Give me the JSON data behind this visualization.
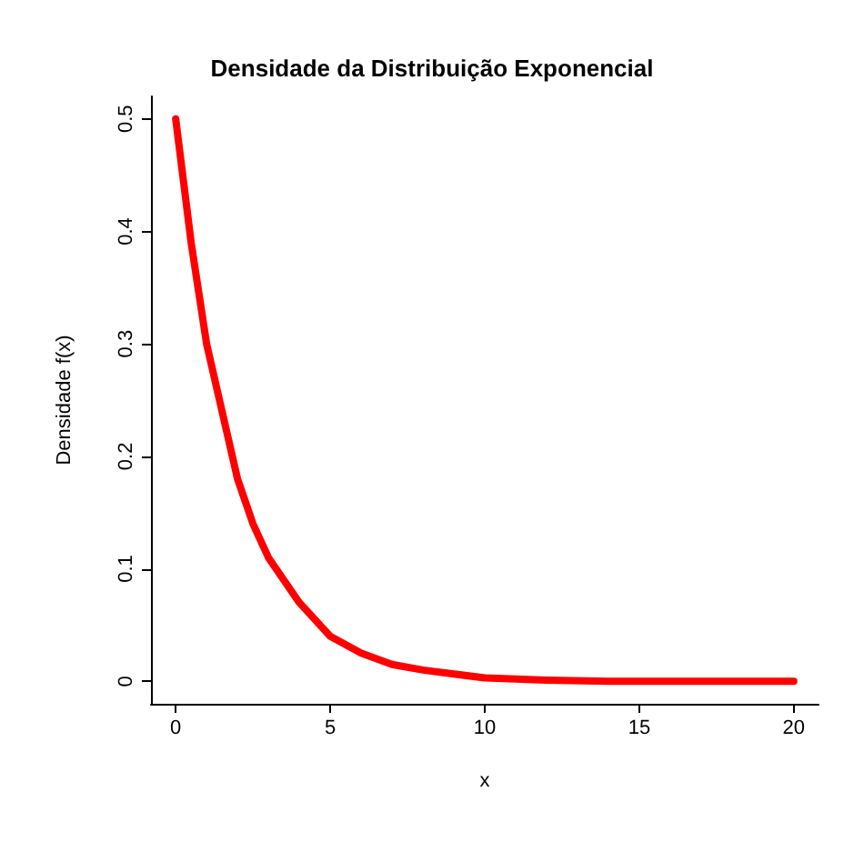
{
  "chart_data": {
    "type": "line",
    "title": "Densidade da Distribuição Exponencial",
    "xlabel": "x",
    "ylabel": "Densidade f(x)",
    "x": [
      0,
      0.5,
      1,
      1.5,
      2,
      2.5,
      3,
      4,
      5,
      6,
      7,
      8,
      10,
      12,
      14,
      16,
      18,
      20
    ],
    "series": [
      {
        "color": "#ff0000",
        "values": [
          0.5,
          0.39,
          0.3,
          0.24,
          0.18,
          0.14,
          0.11,
          0.07,
          0.04,
          0.025,
          0.015,
          0.01,
          0.003,
          0.001,
          0,
          0,
          0,
          0
        ]
      }
    ],
    "xlim": [
      -0.8,
      20.8
    ],
    "ylim": [
      -0.02,
      0.52
    ],
    "xticks": [
      0,
      5,
      10,
      15,
      20
    ],
    "yticks": [
      0,
      0.1,
      0.2,
      0.3,
      0.4,
      0.5
    ],
    "marker": "none",
    "line_style": "solid"
  }
}
